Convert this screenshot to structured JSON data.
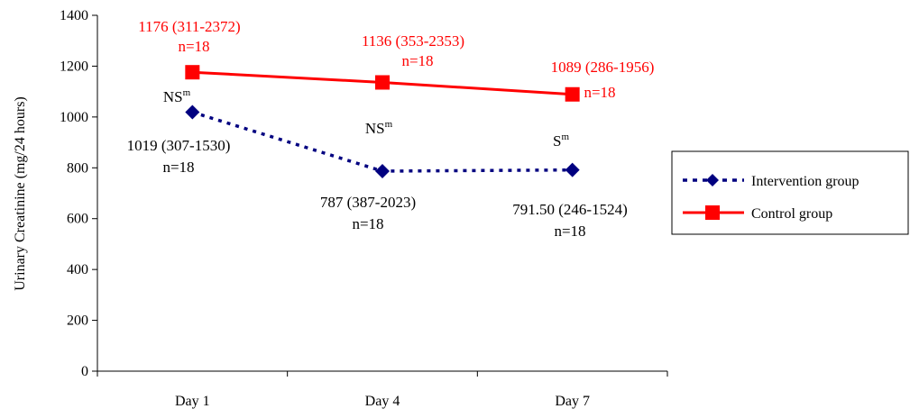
{
  "chart_data": {
    "type": "line",
    "categories": [
      "Day 1",
      "Day 4",
      "Day 7"
    ],
    "ylabel": "Urinary Creatinine (mg/24 hours)",
    "ylim": [
      0,
      1400
    ],
    "yticks": [
      0,
      200,
      400,
      600,
      800,
      1000,
      1200,
      1400
    ],
    "grid": false,
    "legend_position": "right",
    "series": [
      {
        "name": "Intervention group",
        "color": "#000080",
        "line_style": "dashed",
        "marker": "diamond",
        "values": [
          1019,
          787,
          791.5
        ],
        "labels": [
          {
            "value": "1019 (307-1530)",
            "n": "n=18"
          },
          {
            "value": "787 (387-2023)",
            "n": "n=18"
          },
          {
            "value": "791.50 (246-1524)",
            "n": "n=18"
          }
        ]
      },
      {
        "name": "Control  group",
        "color": "#ff0000",
        "line_style": "solid",
        "marker": "square",
        "values": [
          1176,
          1136,
          1089
        ],
        "labels": [
          {
            "value": "1176 (311-2372)",
            "n": "n=18"
          },
          {
            "value": "1136 (353-2353)",
            "n": "n=18"
          },
          {
            "value": "1089 (286-1956)",
            "n": "n=18"
          }
        ]
      }
    ],
    "significance": [
      {
        "base": "NS",
        "sup": "m"
      },
      {
        "base": "NS",
        "sup": "m"
      },
      {
        "base": "S",
        "sup": "m"
      }
    ]
  }
}
